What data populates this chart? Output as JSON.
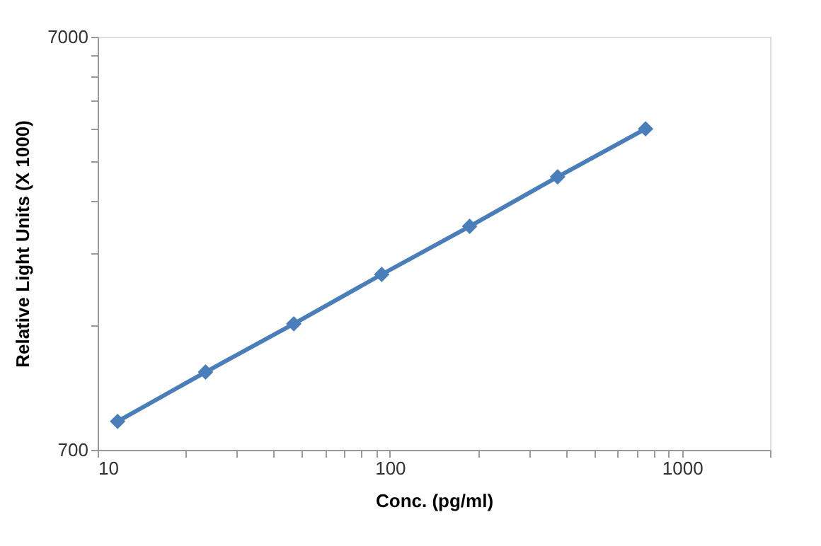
{
  "chart_data": {
    "type": "line",
    "xlabel": "Conc. (pg/ml)",
    "ylabel": "Relative Light Units (X 1000)",
    "x": [
      11.7,
      23.4,
      46.9,
      93.75,
      187.5,
      375,
      750
    ],
    "series": [
      {
        "color": "#4a7ebb",
        "values": [
          820,
          1080,
          1413,
          1861,
          2433,
          3206,
          4190
        ]
      }
    ],
    "log": "xy",
    "xlim": [
      10,
      2000
    ],
    "ylim": [
      700,
      7000
    ],
    "xticks": [
      10,
      {
        "value": 20,
        "label": null
      },
      {
        "value": 30,
        "label": null
      },
      {
        "value": 40,
        "label": null
      },
      {
        "value": 50,
        "label": null
      },
      {
        "value": 60,
        "label": null
      },
      {
        "value": 70,
        "label": null
      },
      {
        "value": 80,
        "label": null
      },
      {
        "value": 90,
        "label": null
      },
      100,
      {
        "value": 200,
        "label": null
      },
      {
        "value": 300,
        "label": null
      },
      {
        "value": 400,
        "label": null
      },
      {
        "value": 500,
        "label": null
      },
      {
        "value": 600,
        "label": null
      },
      {
        "value": 700,
        "label": null
      },
      {
        "value": 800,
        "label": null
      },
      {
        "value": 900,
        "label": null
      },
      1000,
      {
        "value": 2000,
        "label": null
      }
    ],
    "yticks": [
      700,
      {
        "value": 1400,
        "label": null
      },
      {
        "value": 2100,
        "label": null
      },
      {
        "value": 2800,
        "label": null
      },
      {
        "value": 3500,
        "label": null
      },
      {
        "value": 4200,
        "label": null
      },
      {
        "value": 4900,
        "label": null
      },
      {
        "value": 5600,
        "label": null
      },
      {
        "value": 6300,
        "label": null
      },
      7000
    ],
    "grid": false,
    "legend": false,
    "marker": "diamond",
    "line_style": "solid"
  }
}
